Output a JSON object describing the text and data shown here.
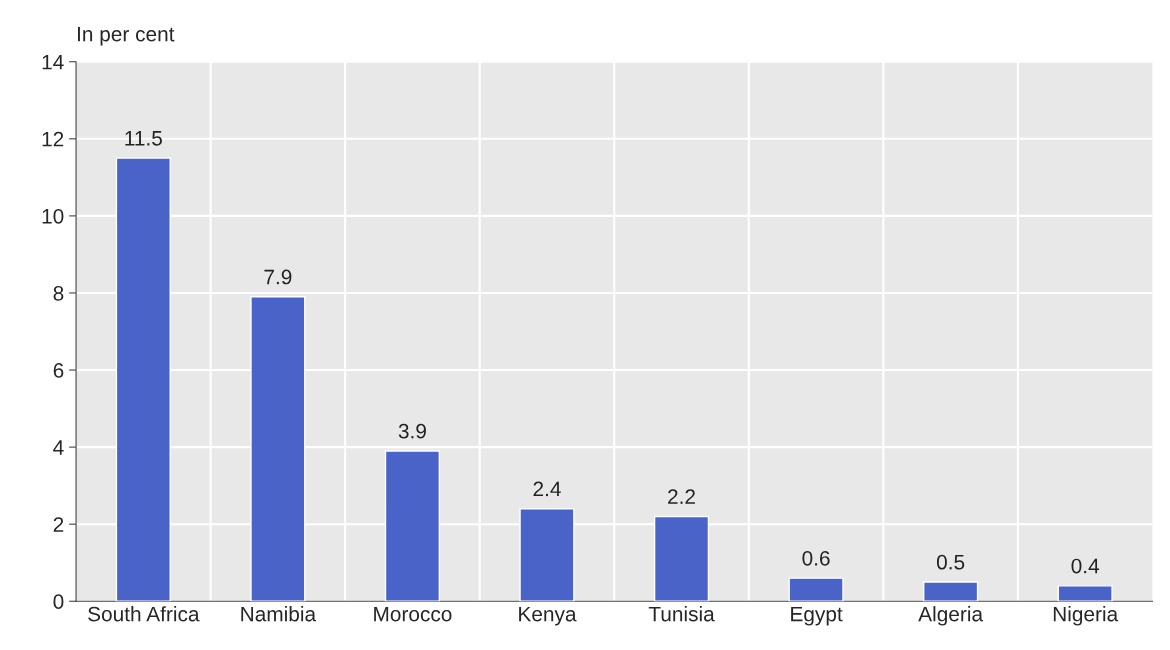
{
  "chart_data": {
    "type": "bar",
    "ylabel": "In per cent",
    "categories": [
      "South Africa",
      "Namibia",
      "Morocco",
      "Kenya",
      "Tunisia",
      "Egypt",
      "Algeria",
      "Nigeria"
    ],
    "values": [
      11.5,
      7.9,
      3.9,
      2.4,
      2.2,
      0.6,
      0.5,
      0.4
    ],
    "color": "#4a63c8",
    "ylim": [
      0,
      14
    ],
    "yticks": [
      0,
      2,
      4,
      6,
      8,
      10,
      12,
      14
    ],
    "grid": true,
    "data_labels": true
  }
}
